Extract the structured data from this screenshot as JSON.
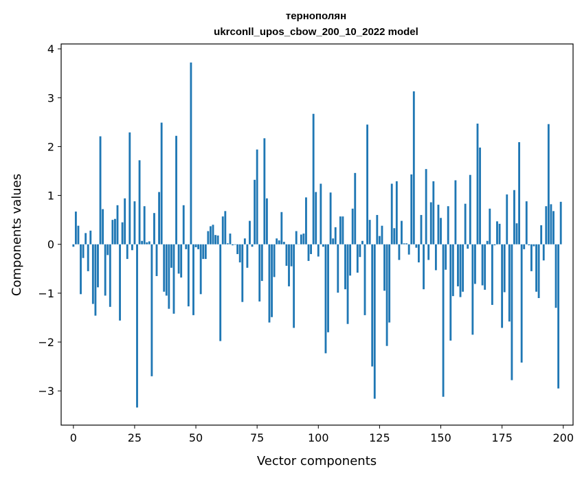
{
  "chart_data": {
    "type": "bar",
    "title": "тернополян",
    "subtitle": "ukrconll_upos_cbow_200_10_2022 model",
    "xlabel": "Vector components",
    "ylabel": "Components values",
    "xlim": [
      -5,
      204
    ],
    "ylim": [
      -3.7,
      4.1
    ],
    "xticks": [
      0,
      25,
      50,
      75,
      100,
      125,
      150,
      175,
      200
    ],
    "yticks": [
      -3,
      -2,
      -1,
      0,
      1,
      2,
      3,
      4
    ],
    "xtick_labels": [
      "0",
      "25",
      "50",
      "75",
      "100",
      "125",
      "150",
      "175",
      "200"
    ],
    "ytick_labels": [
      "−3",
      "−2",
      "−1",
      "0",
      "1",
      "2",
      "3",
      "4"
    ],
    "bar_color": "#1f77b4",
    "grid": false,
    "x": [
      0,
      1,
      2,
      3,
      4,
      5,
      6,
      7,
      8,
      9,
      10,
      11,
      12,
      13,
      14,
      15,
      16,
      17,
      18,
      19,
      20,
      21,
      22,
      23,
      24,
      25,
      26,
      27,
      28,
      29,
      30,
      31,
      32,
      33,
      34,
      35,
      36,
      37,
      38,
      39,
      40,
      41,
      42,
      43,
      44,
      45,
      46,
      47,
      48,
      49,
      50,
      51,
      52,
      53,
      54,
      55,
      56,
      57,
      58,
      59,
      60,
      61,
      62,
      63,
      64,
      65,
      66,
      67,
      68,
      69,
      70,
      71,
      72,
      73,
      74,
      75,
      76,
      77,
      78,
      79,
      80,
      81,
      82,
      83,
      84,
      85,
      86,
      87,
      88,
      89,
      90,
      91,
      92,
      93,
      94,
      95,
      96,
      97,
      98,
      99,
      100,
      101,
      102,
      103,
      104,
      105,
      106,
      107,
      108,
      109,
      110,
      111,
      112,
      113,
      114,
      115,
      116,
      117,
      118,
      119,
      120,
      121,
      122,
      123,
      124,
      125,
      126,
      127,
      128,
      129,
      130,
      131,
      132,
      133,
      134,
      135,
      136,
      137,
      138,
      139,
      140,
      141,
      142,
      143,
      144,
      145,
      146,
      147,
      148,
      149,
      150,
      151,
      152,
      153,
      154,
      155,
      156,
      157,
      158,
      159,
      160,
      161,
      162,
      163,
      164,
      165,
      166,
      167,
      168,
      169,
      170,
      171,
      172,
      173,
      174,
      175,
      176,
      177,
      178,
      179,
      180,
      181,
      182,
      183,
      184,
      185,
      186,
      187,
      188,
      189,
      190,
      191,
      192,
      193,
      194,
      195,
      196,
      197,
      198,
      199
    ],
    "values": [
      -0.05,
      0.67,
      0.38,
      -1.02,
      -0.28,
      0.23,
      -0.55,
      0.28,
      -1.22,
      -1.46,
      -0.88,
      2.21,
      0.72,
      -1.05,
      -0.22,
      -1.28,
      0.5,
      0.52,
      0.8,
      -1.56,
      0.45,
      0.94,
      -0.3,
      2.29,
      -0.12,
      0.88,
      -3.34,
      1.72,
      0.07,
      0.78,
      0.04,
      0.06,
      -2.7,
      0.64,
      -0.65,
      1.07,
      2.49,
      -0.97,
      -1.05,
      -1.32,
      -0.48,
      -1.42,
      2.22,
      -0.6,
      -0.68,
      0.8,
      -0.1,
      -1.27,
      3.72,
      -1.45,
      -0.06,
      -0.1,
      -1.02,
      -0.3,
      -0.3,
      0.27,
      0.37,
      0.4,
      0.19,
      0.18,
      -1.98,
      0.57,
      0.68,
      0.02,
      0.22,
      -0.02,
      -0.01,
      -0.2,
      -0.37,
      -1.18,
      0.12,
      -0.48,
      0.48,
      -0.05,
      1.32,
      1.94,
      -1.17,
      -0.75,
      2.17,
      0.94,
      -1.6,
      -1.49,
      -0.67,
      0.12,
      0.08,
      0.66,
      0.05,
      -0.44,
      -0.86,
      -0.45,
      -1.71,
      0.27,
      0.0,
      0.2,
      0.22,
      0.96,
      -0.34,
      -0.2,
      2.67,
      1.07,
      -0.25,
      1.24,
      -0.05,
      -2.23,
      -1.8,
      1.06,
      0.12,
      0.35,
      -0.99,
      0.57,
      0.57,
      -0.92,
      -1.63,
      -0.64,
      0.73,
      1.46,
      -0.58,
      -0.26,
      0.07,
      -1.45,
      2.45,
      0.5,
      -2.5,
      -3.16,
      0.6,
      0.17,
      0.38,
      -0.95,
      -2.08,
      -1.6,
      1.24,
      0.33,
      1.29,
      -0.32,
      0.48,
      0.02,
      0.02,
      -0.21,
      1.43,
      3.13,
      -0.07,
      -0.37,
      0.6,
      -0.92,
      1.54,
      -0.32,
      0.86,
      1.29,
      -0.53,
      0.81,
      0.54,
      -3.12,
      -0.52,
      0.78,
      -1.97,
      -1.06,
      1.31,
      -0.86,
      -1.08,
      -0.97,
      0.83,
      -0.09,
      1.42,
      -1.85,
      -0.81,
      2.47,
      1.98,
      -0.84,
      -0.93,
      0.07,
      0.73,
      -1.24,
      -0.02,
      0.47,
      0.42,
      -1.71,
      -0.98,
      1.02,
      -1.58,
      -2.78,
      1.11,
      0.43,
      2.09,
      -2.42,
      -0.1,
      0.88,
      -0.02,
      -0.55,
      -0.04,
      -0.97,
      -1.1,
      0.39,
      -0.33,
      0.78,
      2.46,
      0.82,
      0.68,
      -1.3,
      -2.95,
      0.87
    ]
  }
}
